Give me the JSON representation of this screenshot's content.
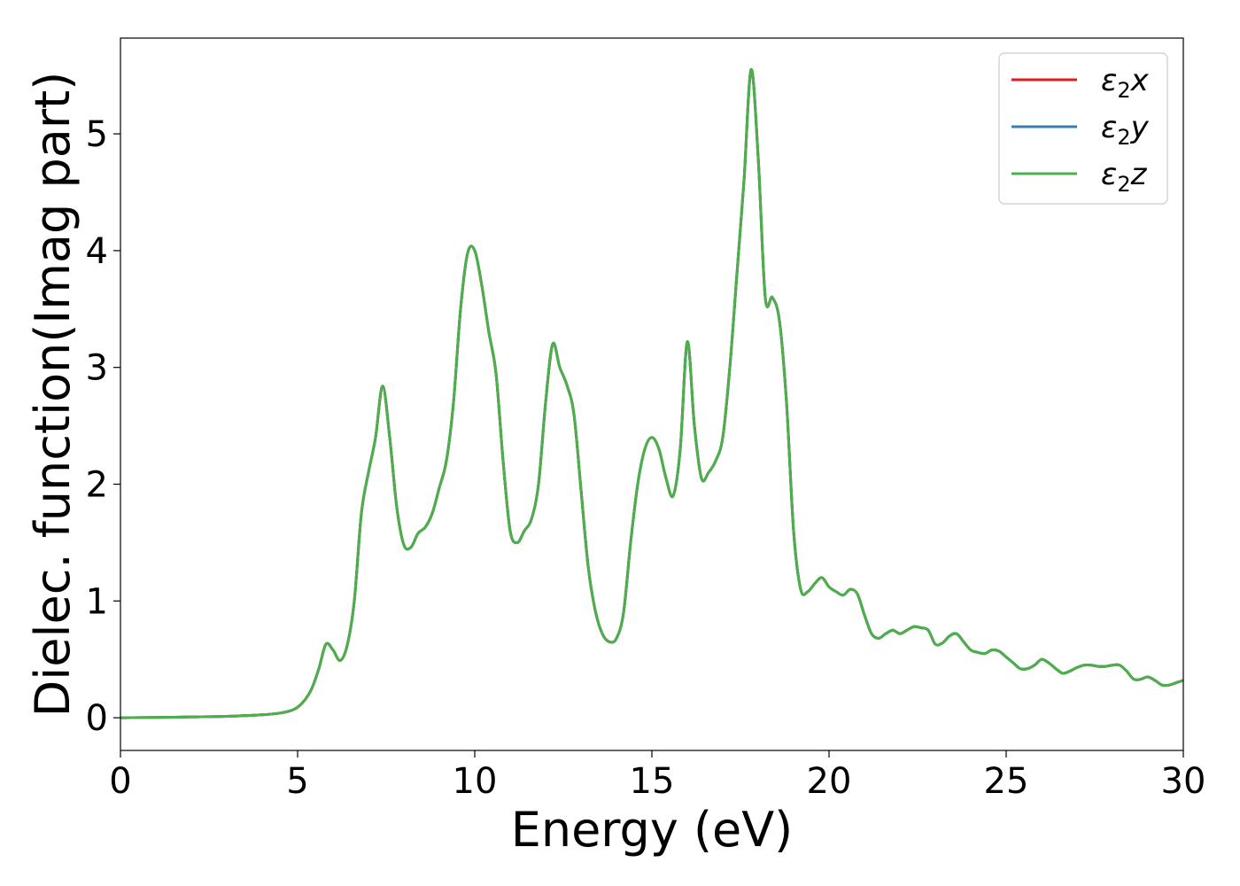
{
  "chart_data": {
    "type": "line",
    "xlabel": "Energy (eV)",
    "ylabel": "Dielec. function(Imag part)",
    "xlim": [
      0,
      30
    ],
    "ylim": [
      -0.28,
      5.82
    ],
    "xticks": [
      0,
      5,
      10,
      15,
      20,
      25,
      30
    ],
    "yticks": [
      0,
      1,
      2,
      3,
      4,
      5
    ],
    "grid": false,
    "legend_position": "top-right",
    "x": [
      0,
      1,
      2,
      3,
      4,
      4.5,
      4.8,
      5.0,
      5.2,
      5.4,
      5.6,
      5.8,
      6.0,
      6.2,
      6.4,
      6.6,
      6.8,
      7.0,
      7.2,
      7.4,
      7.6,
      7.8,
      8.0,
      8.2,
      8.4,
      8.6,
      8.8,
      9.0,
      9.2,
      9.4,
      9.6,
      9.8,
      10.0,
      10.2,
      10.4,
      10.6,
      10.8,
      11.0,
      11.2,
      11.4,
      11.6,
      11.8,
      12.0,
      12.2,
      12.4,
      12.6,
      12.8,
      13.0,
      13.2,
      13.4,
      13.6,
      13.8,
      14.0,
      14.2,
      14.4,
      14.6,
      14.8,
      15.0,
      15.2,
      15.4,
      15.6,
      15.8,
      16.0,
      16.2,
      16.4,
      16.6,
      16.8,
      17.0,
      17.2,
      17.4,
      17.6,
      17.8,
      18.0,
      18.2,
      18.4,
      18.6,
      18.8,
      19.0,
      19.2,
      19.4,
      19.6,
      19.8,
      20.0,
      20.2,
      20.4,
      20.6,
      20.8,
      21.0,
      21.2,
      21.4,
      21.6,
      21.8,
      22.0,
      22.2,
      22.4,
      22.6,
      22.8,
      23.0,
      23.2,
      23.4,
      23.6,
      23.8,
      24.0,
      24.2,
      24.4,
      24.6,
      24.8,
      25.0,
      25.2,
      25.4,
      25.6,
      25.8,
      26.0,
      26.2,
      26.4,
      26.6,
      26.8,
      27.0,
      27.2,
      27.4,
      27.6,
      27.8,
      28.0,
      28.2,
      28.4,
      28.6,
      28.8,
      29.0,
      29.2,
      29.4,
      29.6,
      29.8,
      30.0
    ],
    "series": [
      {
        "name": "ε2x",
        "color": "#e41a1c",
        "values": [
          0.0,
          0.003,
          0.007,
          0.012,
          0.025,
          0.04,
          0.06,
          0.09,
          0.15,
          0.25,
          0.42,
          0.63,
          0.58,
          0.49,
          0.62,
          1.0,
          1.75,
          2.1,
          2.4,
          2.84,
          2.4,
          1.8,
          1.48,
          1.46,
          1.58,
          1.63,
          1.75,
          1.97,
          2.2,
          2.7,
          3.5,
          3.98,
          4.0,
          3.7,
          3.3,
          2.95,
          2.2,
          1.6,
          1.5,
          1.6,
          1.7,
          2.0,
          2.7,
          3.2,
          3.0,
          2.85,
          2.6,
          1.95,
          1.3,
          0.92,
          0.72,
          0.65,
          0.68,
          0.9,
          1.5,
          2.0,
          2.3,
          2.4,
          2.3,
          2.05,
          1.9,
          2.3,
          3.22,
          2.5,
          2.05,
          2.1,
          2.2,
          2.4,
          3.0,
          3.8,
          4.6,
          5.55,
          4.8,
          3.6,
          3.6,
          3.4,
          2.7,
          1.6,
          1.1,
          1.08,
          1.15,
          1.2,
          1.12,
          1.08,
          1.05,
          1.1,
          1.06,
          0.88,
          0.72,
          0.68,
          0.72,
          0.75,
          0.72,
          0.75,
          0.78,
          0.77,
          0.75,
          0.63,
          0.64,
          0.7,
          0.72,
          0.65,
          0.58,
          0.56,
          0.55,
          0.58,
          0.57,
          0.52,
          0.47,
          0.42,
          0.42,
          0.45,
          0.5,
          0.47,
          0.42,
          0.38,
          0.4,
          0.43,
          0.45,
          0.45,
          0.44,
          0.44,
          0.45,
          0.45,
          0.4,
          0.33,
          0.33,
          0.35,
          0.32,
          0.28,
          0.28,
          0.3,
          0.32
        ]
      },
      {
        "name": "ε2y",
        "color": "#377eb8",
        "values": [
          0.0,
          0.003,
          0.007,
          0.012,
          0.025,
          0.04,
          0.06,
          0.09,
          0.15,
          0.25,
          0.42,
          0.63,
          0.58,
          0.49,
          0.62,
          1.0,
          1.75,
          2.1,
          2.4,
          2.84,
          2.4,
          1.8,
          1.48,
          1.46,
          1.58,
          1.63,
          1.75,
          1.97,
          2.2,
          2.7,
          3.5,
          3.98,
          4.0,
          3.7,
          3.3,
          2.95,
          2.2,
          1.6,
          1.5,
          1.6,
          1.7,
          2.0,
          2.7,
          3.2,
          3.0,
          2.85,
          2.6,
          1.95,
          1.3,
          0.92,
          0.72,
          0.65,
          0.68,
          0.9,
          1.5,
          2.0,
          2.3,
          2.4,
          2.3,
          2.05,
          1.9,
          2.3,
          3.22,
          2.5,
          2.05,
          2.1,
          2.2,
          2.4,
          3.0,
          3.8,
          4.6,
          5.55,
          4.8,
          3.6,
          3.6,
          3.4,
          2.7,
          1.6,
          1.1,
          1.08,
          1.15,
          1.2,
          1.12,
          1.08,
          1.05,
          1.1,
          1.06,
          0.88,
          0.72,
          0.68,
          0.72,
          0.75,
          0.72,
          0.75,
          0.78,
          0.77,
          0.75,
          0.63,
          0.64,
          0.7,
          0.72,
          0.65,
          0.58,
          0.56,
          0.55,
          0.58,
          0.57,
          0.52,
          0.47,
          0.42,
          0.42,
          0.45,
          0.5,
          0.47,
          0.42,
          0.38,
          0.4,
          0.43,
          0.45,
          0.45,
          0.44,
          0.44,
          0.45,
          0.45,
          0.4,
          0.33,
          0.33,
          0.35,
          0.32,
          0.28,
          0.28,
          0.3,
          0.32
        ]
      },
      {
        "name": "ε2z",
        "color": "#4daf4a",
        "values": [
          0.0,
          0.003,
          0.007,
          0.012,
          0.025,
          0.04,
          0.06,
          0.09,
          0.15,
          0.25,
          0.42,
          0.63,
          0.58,
          0.49,
          0.62,
          1.0,
          1.75,
          2.1,
          2.4,
          2.84,
          2.4,
          1.8,
          1.48,
          1.46,
          1.58,
          1.63,
          1.75,
          1.97,
          2.2,
          2.7,
          3.5,
          3.98,
          4.0,
          3.7,
          3.3,
          2.95,
          2.2,
          1.6,
          1.5,
          1.6,
          1.7,
          2.0,
          2.7,
          3.2,
          3.0,
          2.85,
          2.6,
          1.95,
          1.3,
          0.92,
          0.72,
          0.65,
          0.68,
          0.9,
          1.5,
          2.0,
          2.3,
          2.4,
          2.3,
          2.05,
          1.9,
          2.3,
          3.22,
          2.5,
          2.05,
          2.1,
          2.2,
          2.4,
          3.0,
          3.8,
          4.6,
          5.55,
          4.8,
          3.6,
          3.6,
          3.4,
          2.7,
          1.6,
          1.1,
          1.08,
          1.15,
          1.2,
          1.12,
          1.08,
          1.05,
          1.1,
          1.06,
          0.88,
          0.72,
          0.68,
          0.72,
          0.75,
          0.72,
          0.75,
          0.78,
          0.77,
          0.75,
          0.63,
          0.64,
          0.7,
          0.72,
          0.65,
          0.58,
          0.56,
          0.55,
          0.58,
          0.57,
          0.52,
          0.47,
          0.42,
          0.42,
          0.45,
          0.5,
          0.47,
          0.42,
          0.38,
          0.4,
          0.43,
          0.45,
          0.45,
          0.44,
          0.44,
          0.45,
          0.45,
          0.4,
          0.33,
          0.33,
          0.35,
          0.32,
          0.28,
          0.28,
          0.3,
          0.32
        ]
      }
    ]
  }
}
